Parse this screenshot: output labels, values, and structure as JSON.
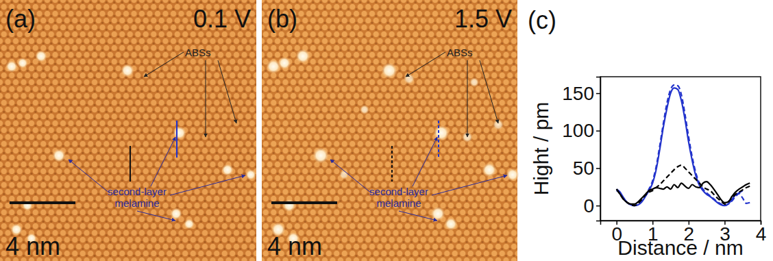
{
  "images": [
    {
      "label": "(a)",
      "bias": "0.1 V",
      "annotations": [
        "ABSs",
        "second-layer melamine"
      ],
      "scale_bar": "4 nm"
    },
    {
      "label": "(b)",
      "bias": "1.5 V",
      "annotations": [
        "ABSs",
        "second-layer melamine"
      ],
      "scale_bar": "4 nm"
    }
  ],
  "chart_data": {
    "type": "line",
    "title": "(c)",
    "x_label": "Distance / nm",
    "y_label": "Hight / pm",
    "x": [
      0,
      0.1,
      0.2,
      0.3,
      0.4,
      0.5,
      0.6,
      0.7,
      0.8,
      0.9,
      1.0,
      1.1,
      1.2,
      1.3,
      1.4,
      1.5,
      1.6,
      1.7,
      1.8,
      1.9,
      2.0,
      2.1,
      2.2,
      2.3,
      2.4,
      2.5,
      2.6,
      2.7,
      2.8,
      2.9,
      3.0,
      3.1,
      3.2,
      3.3,
      3.4,
      3.5,
      3.6,
      3.7
    ],
    "series": [
      {
        "color": "#2233cc",
        "line_style": "solid",
        "values": [
          22,
          18,
          10,
          4,
          1,
          0,
          1,
          5,
          12,
          20,
          30,
          48,
          75,
          105,
          130,
          150,
          157,
          155,
          140,
          115,
          85,
          60,
          40,
          27,
          20,
          15,
          12,
          8,
          4,
          1,
          0,
          2,
          8,
          14,
          17,
          20,
          null,
          null
        ]
      },
      {
        "color": "#2233cc",
        "line_style": "dashed",
        "values": [
          20,
          17,
          10,
          4,
          1,
          0,
          2,
          6,
          13,
          22,
          33,
          52,
          80,
          110,
          137,
          155,
          161,
          160,
          148,
          122,
          92,
          65,
          44,
          30,
          22,
          17,
          13,
          9,
          5,
          2,
          0,
          2,
          6,
          12,
          16,
          10,
          3,
          4
        ]
      },
      {
        "color": "#000000",
        "line_style": "solid",
        "values": [
          22,
          15,
          8,
          4,
          2,
          2,
          5,
          10,
          15,
          20,
          22,
          24,
          23,
          22,
          25,
          22,
          28,
          24,
          30,
          26,
          23,
          28,
          25,
          24,
          30,
          32,
          28,
          22,
          15,
          8,
          4,
          5,
          12,
          18,
          22,
          25,
          28,
          30
        ]
      },
      {
        "color": "#000000",
        "line_style": "dashed",
        "values": [
          22,
          15,
          8,
          4,
          1,
          0,
          3,
          8,
          14,
          18,
          20,
          24,
          28,
          33,
          38,
          43,
          48,
          52,
          54,
          50,
          45,
          40,
          35,
          30,
          25,
          22,
          20,
          15,
          10,
          6,
          2,
          5,
          10,
          15,
          18,
          21,
          24,
          26
        ]
      }
    ],
    "xlim": [
      -0.45,
      4
    ],
    "ylim": [
      -20,
      172
    ],
    "xticks": [
      0,
      1,
      2,
      3,
      4
    ],
    "yticks": [
      0,
      50,
      100,
      150
    ],
    "grid": false
  }
}
